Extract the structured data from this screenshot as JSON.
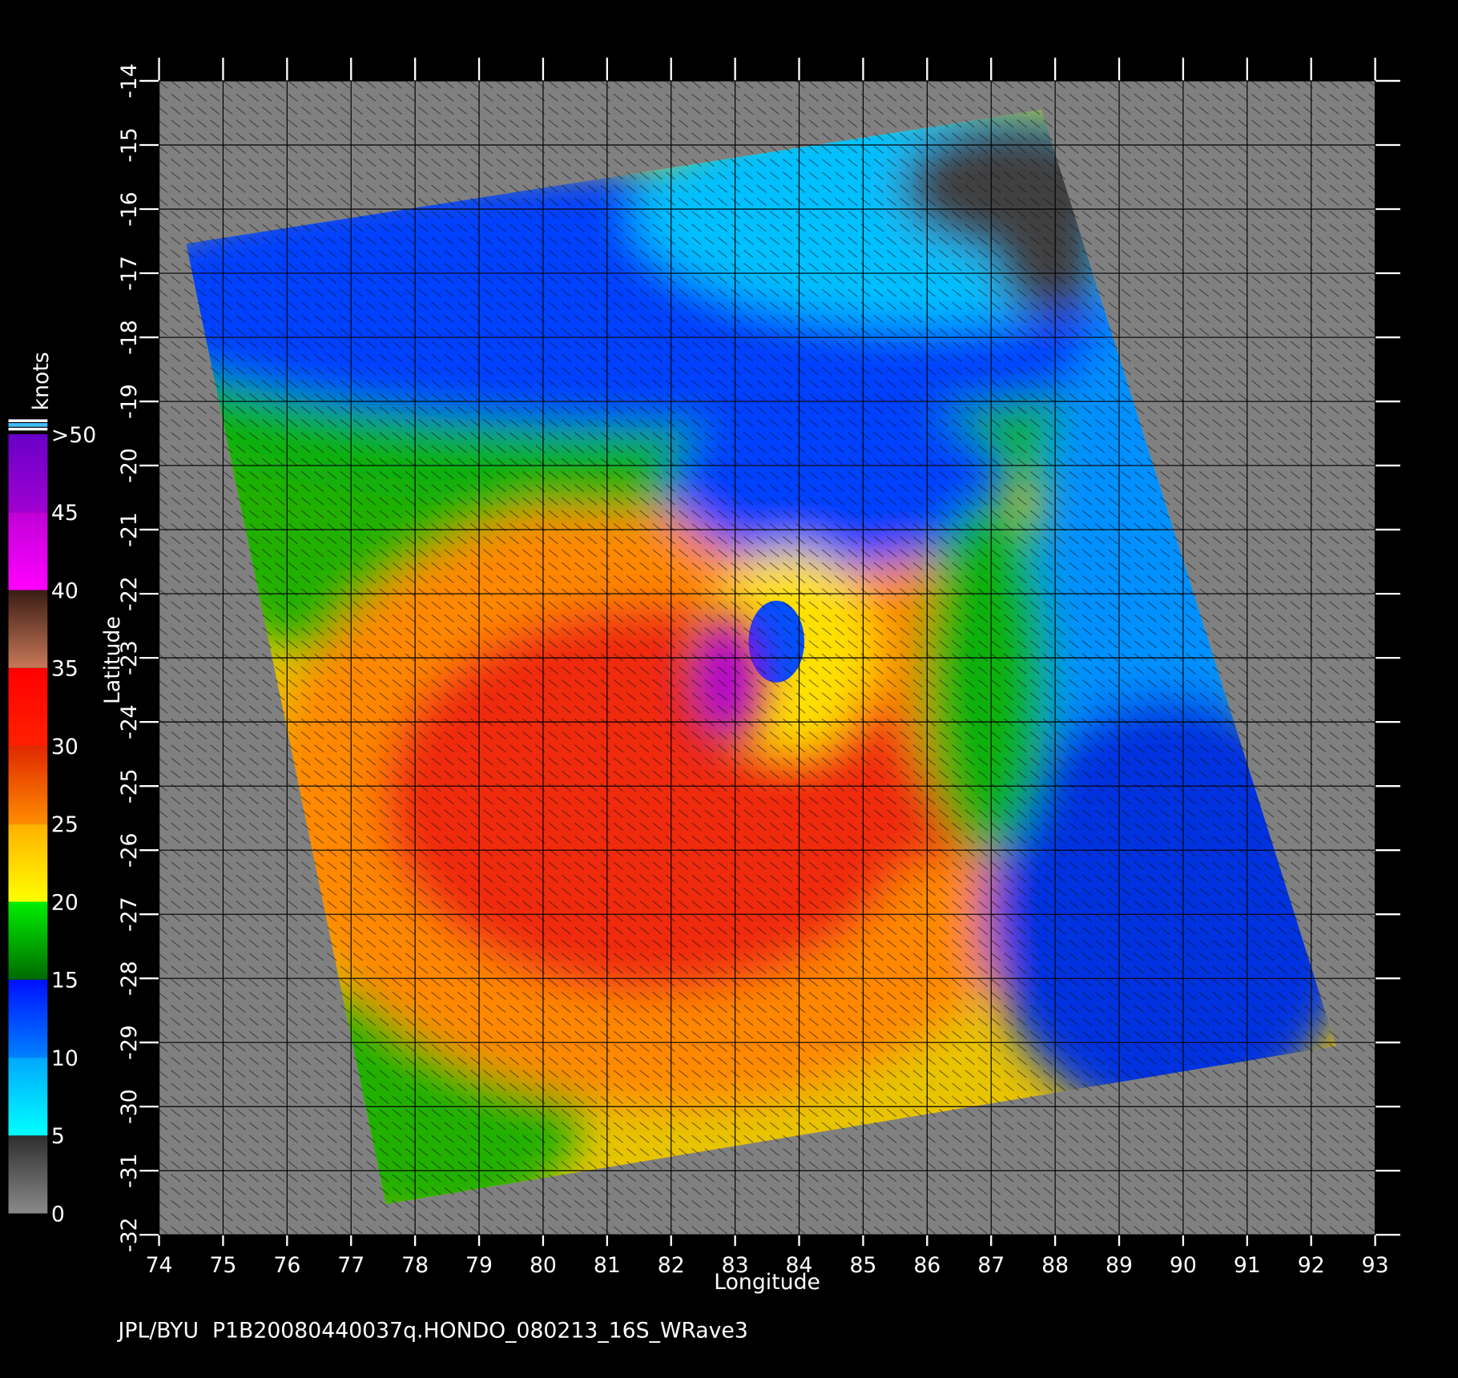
{
  "map": {
    "type": "map",
    "x_label": "Longitude",
    "y_label": "Latitude",
    "xlim": [
      74,
      93
    ],
    "ylim": [
      -32,
      -14
    ],
    "xticks": [
      74,
      75,
      76,
      77,
      78,
      79,
      80,
      81,
      82,
      83,
      84,
      85,
      86,
      87,
      88,
      89,
      90,
      91,
      92,
      93
    ],
    "yticks": [
      -14,
      -15,
      -16,
      -17,
      -18,
      -19,
      -20,
      -21,
      -22,
      -23,
      -24,
      -25,
      -26,
      -27,
      -28,
      -29,
      -30,
      -31,
      -32
    ],
    "grid": true,
    "background": "#000000",
    "no_data_color": "#808080"
  },
  "colorbar": {
    "label": "knots",
    "ticks": [
      0,
      5,
      10,
      15,
      20,
      25,
      30,
      35,
      40,
      45,
      {
        "value": 50,
        "label": ">50"
      }
    ],
    "colors": [
      [
        "#8a8a8a",
        "#2e2e2e"
      ],
      [
        "#00ffff",
        "#00a8ff"
      ],
      [
        "#0080ff",
        "#0010ff"
      ],
      [
        "#006a00",
        "#00f000"
      ],
      [
        "#ffff00",
        "#ffb000"
      ],
      [
        "#ff8c00",
        "#e02800"
      ],
      [
        "#ff2000",
        "#ff0000"
      ],
      [
        "#c87858",
        "#3a1c14"
      ],
      [
        "#ff00ff",
        "#c000d8"
      ],
      [
        "#a000d0",
        "#6800c8"
      ]
    ]
  },
  "footer": "JPL/BYU  P1B20080440037q.HONDO_080213_16S_WRave3"
}
